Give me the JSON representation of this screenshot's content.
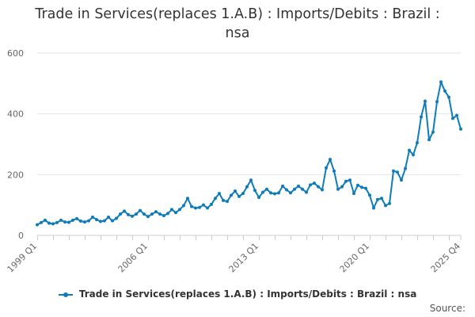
{
  "chart_data": {
    "type": "line",
    "title": "Trade in Services(replaces 1.A.B) : Imports/Debits : Brazil : nsa",
    "title_line1": "Trade in Services(replaces 1.A.B) : Imports/Debits : Brazil :",
    "title_line2": "nsa",
    "xlabel": "",
    "ylabel": "",
    "ylim": [
      0,
      600
    ],
    "yticks": [
      0,
      200,
      400,
      600
    ],
    "xtick_labels": [
      "1999 Q1",
      "2006 Q1",
      "2013 Q1",
      "2020 Q1",
      "2025 Q4"
    ],
    "grid": true,
    "legend_position": "bottom",
    "color": "#0e7cba",
    "series": [
      {
        "name": "Trade in Services(replaces 1.A.B) : Imports/Debits : Brazil : nsa",
        "x_start": "1999 Q1",
        "x_end": "2025 Q4",
        "frequency": "quarterly",
        "values": [
          35,
          42,
          50,
          40,
          38,
          42,
          50,
          44,
          43,
          50,
          55,
          47,
          44,
          48,
          60,
          52,
          46,
          48,
          60,
          48,
          56,
          70,
          80,
          68,
          63,
          70,
          82,
          70,
          62,
          70,
          78,
          70,
          65,
          72,
          85,
          75,
          85,
          98,
          122,
          95,
          90,
          92,
          100,
          90,
          102,
          122,
          138,
          115,
          112,
          132,
          146,
          128,
          138,
          160,
          182,
          148,
          125,
          142,
          152,
          140,
          137,
          140,
          162,
          150,
          140,
          152,
          162,
          152,
          142,
          166,
          172,
          160,
          150,
          222,
          250,
          212,
          152,
          160,
          178,
          182,
          138,
          165,
          158,
          155,
          132,
          90,
          118,
          122,
          98,
          105,
          212,
          208,
          182,
          220,
          280,
          265,
          305,
          390,
          442,
          315,
          340,
          440,
          505,
          475,
          455,
          385,
          395,
          350
        ]
      }
    ]
  },
  "legend": {
    "label": "Trade in Services(replaces 1.A.B) : Imports/Debits : Brazil : nsa"
  },
  "source": {
    "label": "Source:"
  }
}
